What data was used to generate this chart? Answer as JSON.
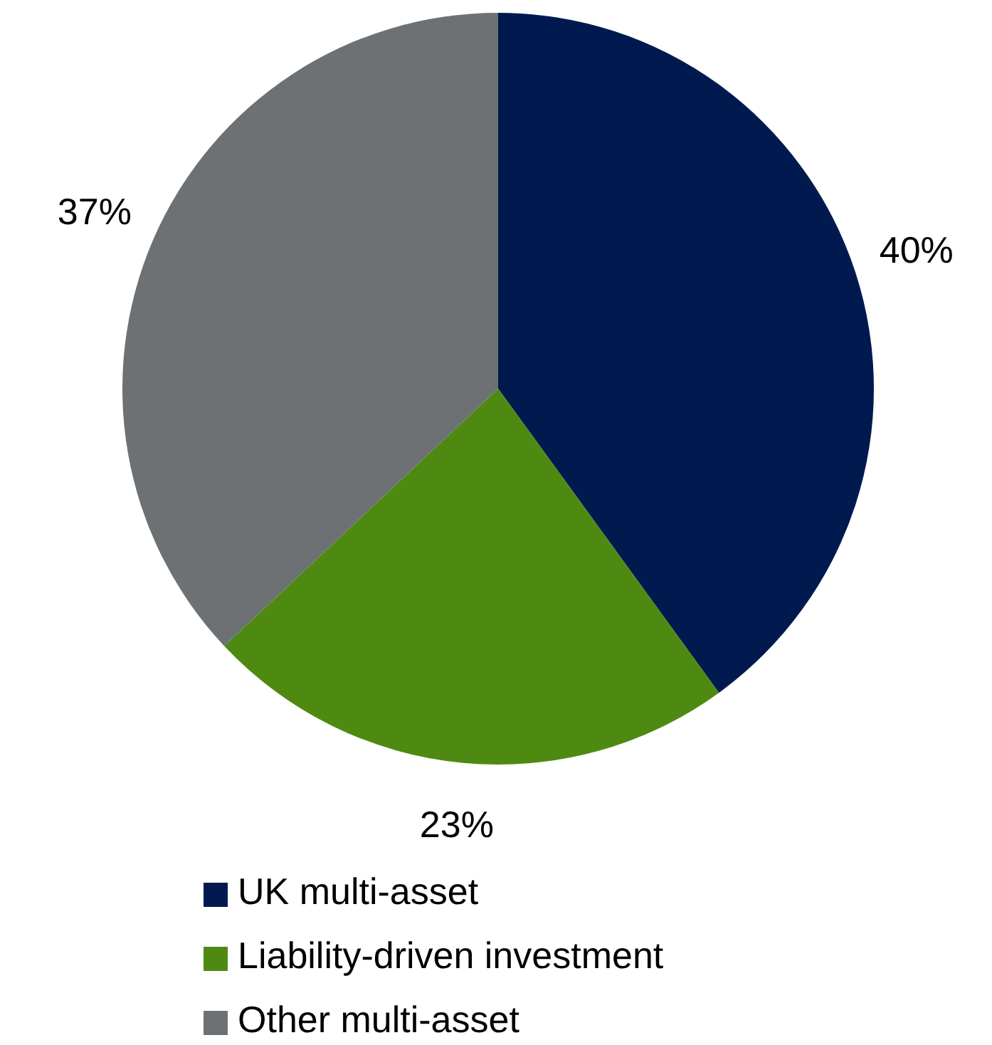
{
  "chart_data": {
    "type": "pie",
    "categories": [
      "UK multi-asset",
      "Liability-driven investment",
      "Other multi-asset"
    ],
    "values": [
      40,
      23,
      37
    ],
    "colors": [
      "#001a4f",
      "#4e8a12",
      "#6d7173"
    ],
    "value_labels": [
      "40%",
      "23%",
      "37%"
    ],
    "legend": "bottom"
  }
}
